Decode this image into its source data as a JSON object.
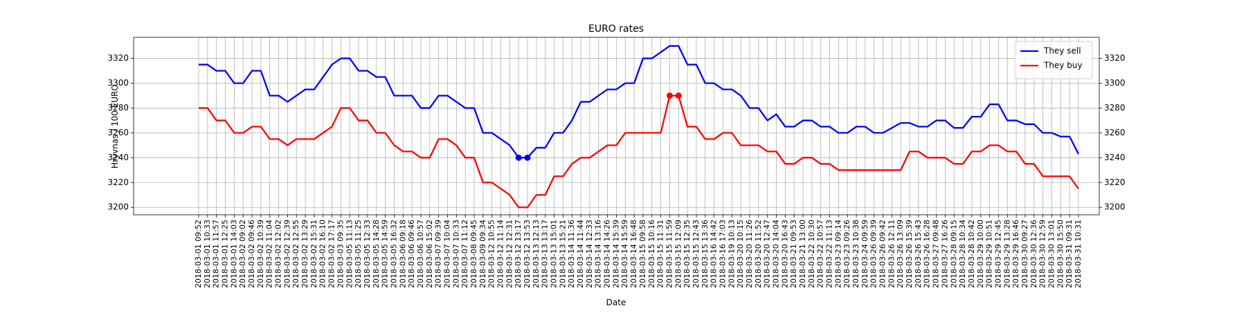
{
  "chart_data": {
    "type": "line",
    "title": "EURO rates",
    "xlabel": "Date",
    "ylabel": "Hryvnas / 100 EURO",
    "categories": [
      "2018-03-01 09:52",
      "2018-03-01 10:33",
      "2018-03-01 11:57",
      "2018-03-01 12:25",
      "2018-03-01 14:03",
      "2018-03-02 09:02",
      "2018-03-02 09:46",
      "2018-03-02 10:39",
      "2018-03-02 11:04",
      "2018-03-02 12:02",
      "2018-03-02 12:39",
      "2018-03-02 12:55",
      "2018-03-02 13:29",
      "2018-03-02 15:31",
      "2018-03-02 16:10",
      "2018-03-02 17:17",
      "2018-03-03 09:35",
      "2018-03-05 11:13",
      "2018-03-05 11:25",
      "2018-03-05 12:33",
      "2018-03-05 14:28",
      "2018-03-05 14:59",
      "2018-03-05 16:32",
      "2018-03-06 09:18",
      "2018-03-06 09:46",
      "2018-03-06 10:57",
      "2018-03-06 15:02",
      "2018-03-07 09:39",
      "2018-03-07 10:04",
      "2018-03-07 10:33",
      "2018-03-07 11:12",
      "2018-03-08 09:45",
      "2018-03-09 09:34",
      "2018-03-12 10:55",
      "2018-03-12 11:14",
      "2018-03-12 12:31",
      "2018-03-12 13:17",
      "2018-03-12 13:53",
      "2018-03-13 12:13",
      "2018-03-13 13:17",
      "2018-03-13 15:01",
      "2018-03-13 15:21",
      "2018-03-14 11:36",
      "2018-03-14 11:44",
      "2018-03-14 12:33",
      "2018-03-14 13:16",
      "2018-03-14 14:26",
      "2018-03-14 15:39",
      "2018-03-14 15:59",
      "2018-03-14 16:48",
      "2018-03-15 09:58",
      "2018-03-15 10:16",
      "2018-03-15 11:31",
      "2018-03-15 11:59",
      "2018-03-15 12:09",
      "2018-03-15 12:35",
      "2018-03-15 12:43",
      "2018-03-15 13:36",
      "2018-03-16 14:42",
      "2018-03-16 17:03",
      "2018-03-19 10:13",
      "2018-03-20 10:15",
      "2018-03-20 11:26",
      "2018-03-20 11:52",
      "2018-03-20 12:47",
      "2018-03-20 14:04",
      "2018-03-20 16:43",
      "2018-03-21 09:53",
      "2018-03-21 13:00",
      "2018-03-22 10:30",
      "2018-03-22 10:57",
      "2018-03-22 11:13",
      "2018-03-23 09:14",
      "2018-03-23 09:26",
      "2018-03-23 10:38",
      "2018-03-24 09:59",
      "2018-03-26 09:39",
      "2018-03-26 09:42",
      "2018-03-26 12:11",
      "2018-03-26 13:09",
      "2018-03-26 15:39",
      "2018-03-26 15:43",
      "2018-03-26 16:28",
      "2018-03-27 09:48",
      "2018-03-27 16:26",
      "2018-03-28 09:15",
      "2018-03-28 10:34",
      "2018-03-28 10:42",
      "2018-03-29 10:00",
      "2018-03-29 10:51",
      "2018-03-29 12:45",
      "2018-03-29 13:28",
      "2018-03-29 16:46",
      "2018-03-30 09:27",
      "2018-03-30 12:36",
      "2018-03-30 12:59",
      "2018-03-30 13:01",
      "2018-03-30 15:50",
      "2018-03-31 09:31",
      "2018-03-31 10:31"
    ],
    "series": [
      {
        "name": "They sell",
        "color": "#0000ff",
        "markers": [
          36,
          37
        ],
        "values": [
          3315,
          3315,
          3310,
          3310,
          3300,
          3300,
          3310,
          3310,
          3290,
          3290,
          3285,
          3290,
          3295,
          3295,
          3305,
          3315,
          3320,
          3320,
          3310,
          3310,
          3305,
          3305,
          3290,
          3290,
          3290,
          3280,
          3280,
          3290,
          3290,
          3285,
          3280,
          3280,
          3260,
          3260,
          3255,
          3250,
          3240,
          3240,
          3248,
          3248,
          3260,
          3260,
          3270,
          3285,
          3285,
          3290,
          3295,
          3295,
          3300,
          3300,
          3320,
          3320,
          3325,
          3330,
          3330,
          3315,
          3315,
          3300,
          3300,
          3295,
          3295,
          3290,
          3280,
          3280,
          3270,
          3275,
          3265,
          3265,
          3270,
          3270,
          3265,
          3265,
          3260,
          3260,
          3265,
          3265,
          3260,
          3260,
          3264,
          3268,
          3268,
          3265,
          3265,
          3270,
          3270,
          3264,
          3264,
          3273,
          3273,
          3283,
          3283,
          3270,
          3270,
          3267,
          3267,
          3260,
          3260,
          3257,
          3257,
          3243
        ]
      },
      {
        "name": "They buy",
        "color": "#ff0000",
        "markers": [
          53,
          54
        ],
        "values": [
          3280,
          3280,
          3270,
          3270,
          3260,
          3260,
          3265,
          3265,
          3255,
          3255,
          3250,
          3255,
          3255,
          3255,
          3260,
          3265,
          3280,
          3280,
          3270,
          3270,
          3260,
          3260,
          3250,
          3245,
          3245,
          3240,
          3240,
          3255,
          3255,
          3250,
          3240,
          3240,
          3220,
          3220,
          3215,
          3210,
          3200,
          3200,
          3210,
          3210,
          3225,
          3225,
          3235,
          3240,
          3240,
          3245,
          3250,
          3250,
          3260,
          3260,
          3260,
          3260,
          3260,
          3290,
          3290,
          3265,
          3265,
          3255,
          3255,
          3260,
          3260,
          3250,
          3250,
          3250,
          3245,
          3245,
          3235,
          3235,
          3240,
          3240,
          3235,
          3235,
          3230,
          3230,
          3230,
          3230,
          3230,
          3230,
          3230,
          3230,
          3245,
          3245,
          3240,
          3240,
          3240,
          3235,
          3235,
          3245,
          3245,
          3250,
          3250,
          3245,
          3245,
          3235,
          3235,
          3225,
          3225,
          3225,
          3225,
          3215
        ]
      }
    ],
    "ylim": [
      3194,
      3337
    ],
    "yticks": [
      3200,
      3220,
      3240,
      3260,
      3280,
      3300,
      3320
    ],
    "y2lim": [
      3194,
      3337
    ],
    "y2ticks": [
      3200,
      3220,
      3240,
      3260,
      3280,
      3300,
      3320
    ],
    "grid": true,
    "legend": "upper right"
  }
}
